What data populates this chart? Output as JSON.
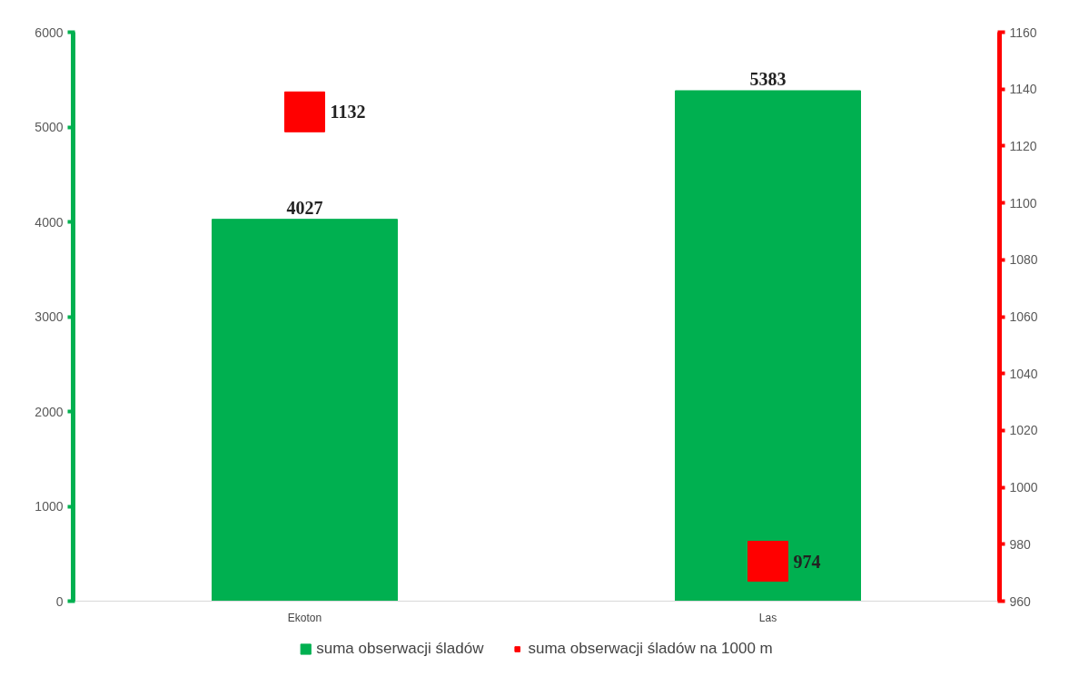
{
  "chart_data": {
    "type": "bar",
    "categories": [
      "Ekoton",
      "Las"
    ],
    "series": [
      {
        "name": "suma obserwacji śladów",
        "color": "#00b050",
        "values": [
          4027,
          5383
        ]
      },
      {
        "name": "suma obserwacji śladów na 1000 m",
        "color": "#ff0000",
        "values": [
          1132,
          974
        ],
        "type": "scatter",
        "axis": "y2",
        "marker": "square"
      }
    ],
    "ylim": [
      0,
      6000
    ],
    "yticks": [
      0,
      1000,
      2000,
      3000,
      4000,
      5000,
      6000
    ],
    "y2lim": [
      960,
      1160
    ],
    "y2ticks": [
      960,
      980,
      1000,
      1020,
      1040,
      1060,
      1080,
      1100,
      1120,
      1140,
      1160
    ],
    "data_labels": true,
    "grid": false,
    "legend": "bottom"
  }
}
